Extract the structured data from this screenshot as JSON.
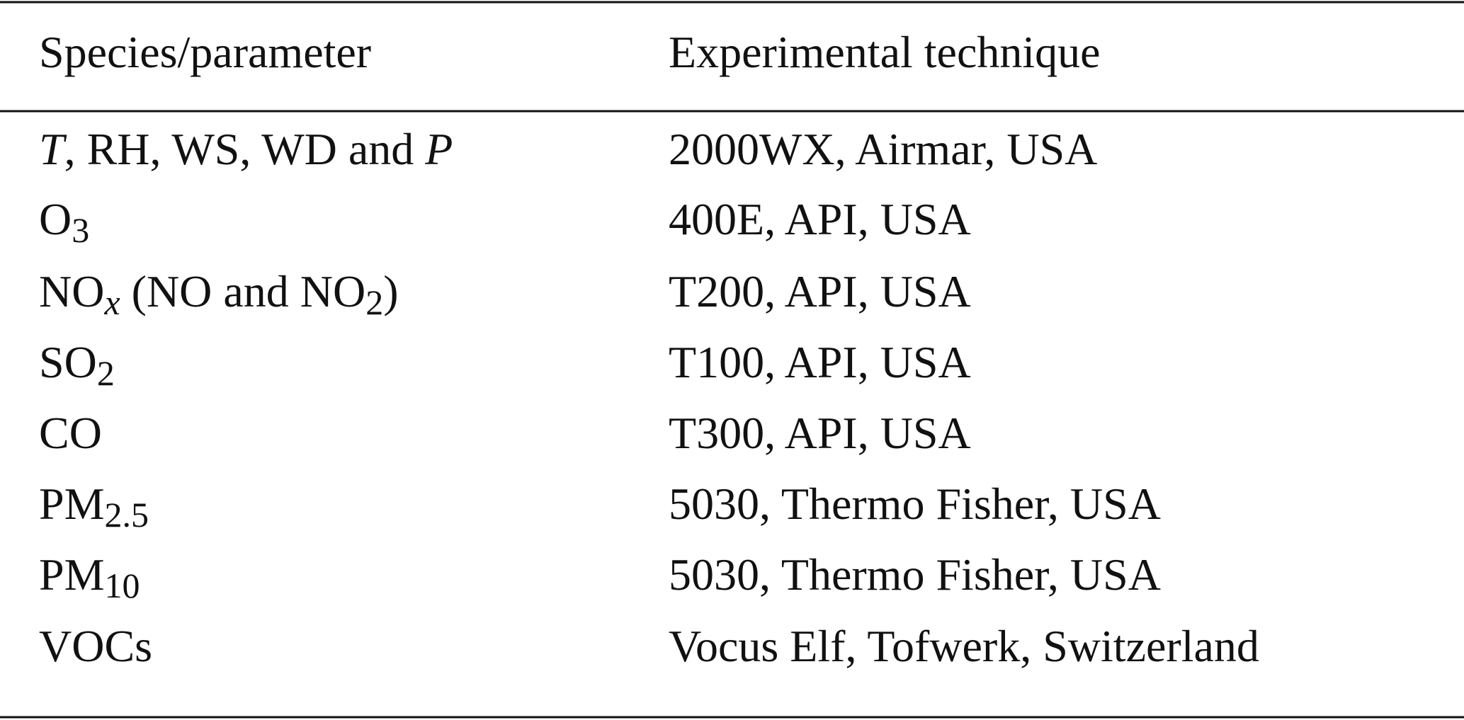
{
  "table": {
    "header": [
      "Species/parameter",
      "Experimental technique"
    ],
    "rows": [
      [
        [
          {
            "text": "T",
            "italic": true
          },
          {
            "text": ", RH, WS, WD and "
          },
          {
            "text": "P",
            "italic": true
          }
        ],
        [
          {
            "text": "2000WX, Airmar, USA"
          }
        ]
      ],
      [
        [
          {
            "text": "O"
          },
          {
            "text": "3",
            "sub": true
          }
        ],
        [
          {
            "text": "400E, API, USA"
          }
        ]
      ],
      [
        [
          {
            "text": "NO"
          },
          {
            "text": "x",
            "sub": true,
            "italic": true
          },
          {
            "text": " (NO and NO"
          },
          {
            "text": "2",
            "sub": true
          },
          {
            "text": ")"
          }
        ],
        [
          {
            "text": "T200, API, USA"
          }
        ]
      ],
      [
        [
          {
            "text": "SO"
          },
          {
            "text": "2",
            "sub": true
          }
        ],
        [
          {
            "text": "T100, API, USA"
          }
        ]
      ],
      [
        [
          {
            "text": "CO"
          }
        ],
        [
          {
            "text": "T300, API, USA"
          }
        ]
      ],
      [
        [
          {
            "text": "PM"
          },
          {
            "text": "2.5",
            "sub": true
          }
        ],
        [
          {
            "text": "5030, Thermo Fisher, USA"
          }
        ]
      ],
      [
        [
          {
            "text": "PM"
          },
          {
            "text": "10",
            "sub": true
          }
        ],
        [
          {
            "text": "5030, Thermo Fisher, USA"
          }
        ]
      ],
      [
        [
          {
            "text": "VOCs"
          }
        ],
        [
          {
            "text": "Vocus Elf, Tofwerk, Switzerland"
          }
        ]
      ]
    ]
  }
}
